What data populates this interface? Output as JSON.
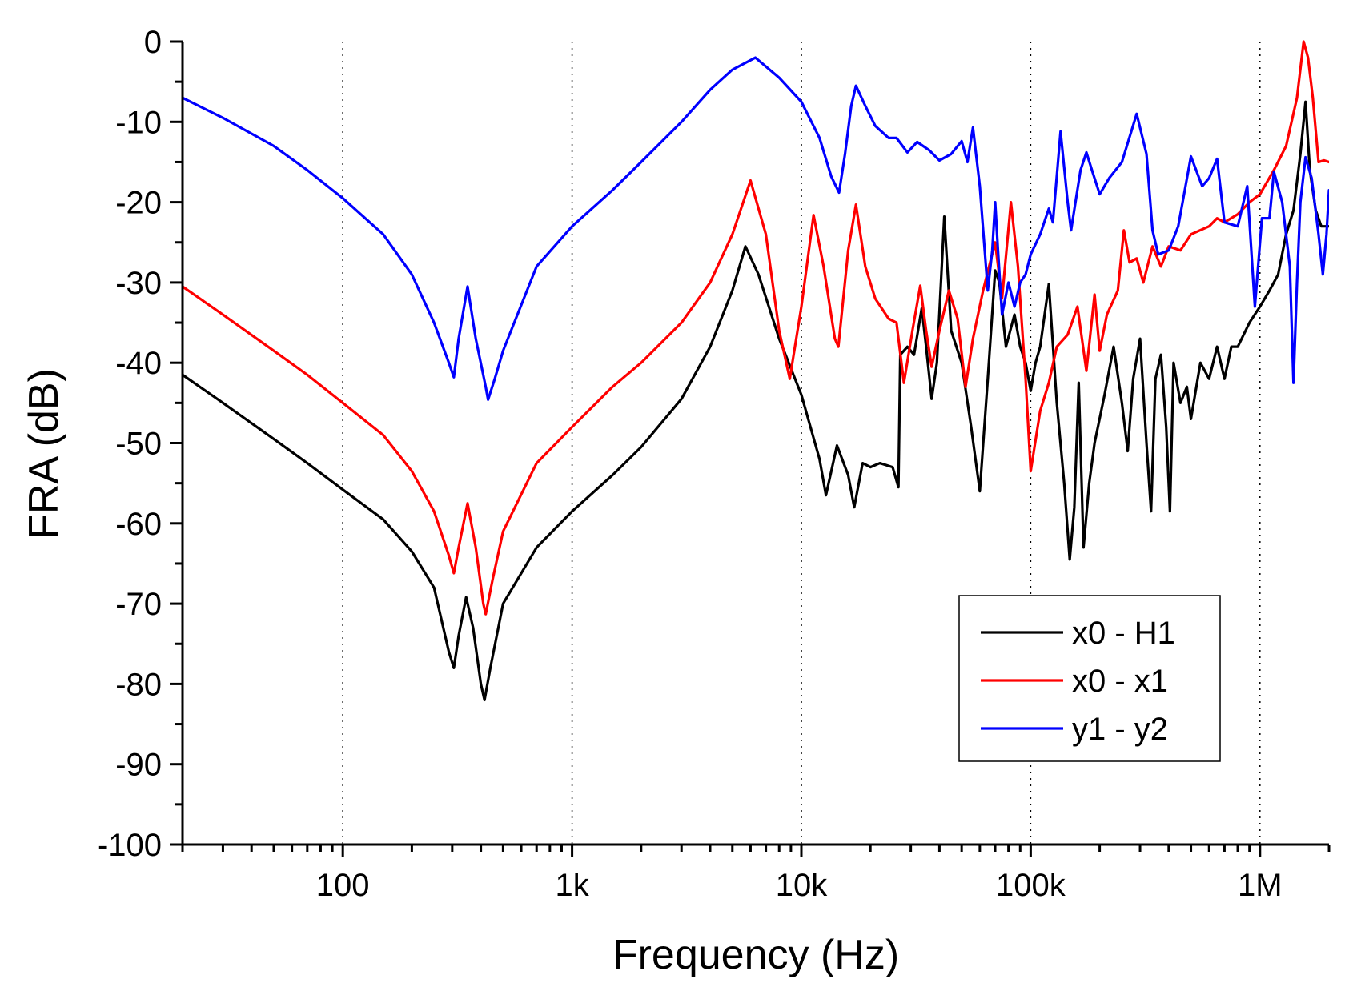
{
  "chart_data": {
    "type": "line",
    "xscale": "log",
    "xlabel": "Frequency (Hz)",
    "ylabel": "FRA (dB)",
    "xlim": [
      20,
      2000000
    ],
    "ylim": [
      -100,
      0
    ],
    "x_ticks": [
      {
        "value": 100,
        "label": "100"
      },
      {
        "value": 1000,
        "label": "1k"
      },
      {
        "value": 10000,
        "label": "10k"
      },
      {
        "value": 100000,
        "label": "100k"
      },
      {
        "value": 1000000,
        "label": "1M"
      }
    ],
    "y_ticks": [
      {
        "value": 0,
        "label": "0"
      },
      {
        "value": -10,
        "label": "-10"
      },
      {
        "value": -20,
        "label": "-20"
      },
      {
        "value": -30,
        "label": "-30"
      },
      {
        "value": -40,
        "label": "-40"
      },
      {
        "value": -50,
        "label": "-50"
      },
      {
        "value": -60,
        "label": "-60"
      },
      {
        "value": -70,
        "label": "-70"
      },
      {
        "value": -80,
        "label": "-80"
      },
      {
        "value": -90,
        "label": "-90"
      },
      {
        "value": -100,
        "label": "-100"
      }
    ],
    "grid": "vertical dotted at decades",
    "legend_position": "bottom-right",
    "series": [
      {
        "name": "x0 - H1",
        "color": "#000000",
        "points": [
          [
            20,
            -41.5
          ],
          [
            30,
            -45
          ],
          [
            50,
            -49.5
          ],
          [
            70,
            -52.5
          ],
          [
            100,
            -55.8
          ],
          [
            150,
            -59.5
          ],
          [
            200,
            -63.5
          ],
          [
            250,
            -68
          ],
          [
            290,
            -76
          ],
          [
            305,
            -78
          ],
          [
            320,
            -74
          ],
          [
            345,
            -69.2
          ],
          [
            370,
            -73
          ],
          [
            400,
            -80
          ],
          [
            415,
            -82
          ],
          [
            440,
            -78
          ],
          [
            500,
            -70
          ],
          [
            700,
            -63
          ],
          [
            1000,
            -58.5
          ],
          [
            1500,
            -54
          ],
          [
            2000,
            -50.5
          ],
          [
            3000,
            -44.5
          ],
          [
            4000,
            -38
          ],
          [
            5000,
            -31
          ],
          [
            5700,
            -25.5
          ],
          [
            6500,
            -29
          ],
          [
            8000,
            -37
          ],
          [
            10000,
            -44
          ],
          [
            12000,
            -52
          ],
          [
            12800,
            -56.5
          ],
          [
            14300,
            -50.3
          ],
          [
            16000,
            -54
          ],
          [
            17000,
            -58
          ],
          [
            18500,
            -52.5
          ],
          [
            20000,
            -53
          ],
          [
            22000,
            -52.5
          ],
          [
            25000,
            -53
          ],
          [
            26500,
            -55.5
          ],
          [
            27000,
            -39
          ],
          [
            29000,
            -38
          ],
          [
            31000,
            -39
          ],
          [
            33500,
            -33.2
          ],
          [
            35000,
            -38
          ],
          [
            37000,
            -44.5
          ],
          [
            39000,
            -40
          ],
          [
            42000,
            -21.8
          ],
          [
            45000,
            -36
          ],
          [
            50000,
            -40
          ],
          [
            55000,
            -48
          ],
          [
            60000,
            -56
          ],
          [
            65000,
            -42
          ],
          [
            70000,
            -28.5
          ],
          [
            73000,
            -30
          ],
          [
            78000,
            -38
          ],
          [
            85000,
            -34
          ],
          [
            90000,
            -38
          ],
          [
            95000,
            -40
          ],
          [
            100000,
            -43.5
          ],
          [
            105000,
            -40
          ],
          [
            110000,
            -38
          ],
          [
            120000,
            -30.2
          ],
          [
            130000,
            -45
          ],
          [
            140000,
            -55
          ],
          [
            148000,
            -64.5
          ],
          [
            155000,
            -58
          ],
          [
            162000,
            -42.5
          ],
          [
            170000,
            -63
          ],
          [
            180000,
            -55
          ],
          [
            190000,
            -50
          ],
          [
            210000,
            -44
          ],
          [
            230000,
            -38
          ],
          [
            250000,
            -45
          ],
          [
            265000,
            -51
          ],
          [
            280000,
            -42
          ],
          [
            300000,
            -37
          ],
          [
            320000,
            -50
          ],
          [
            335000,
            -58.5
          ],
          [
            350000,
            -42
          ],
          [
            370000,
            -39
          ],
          [
            390000,
            -48
          ],
          [
            405000,
            -58.5
          ],
          [
            420000,
            -40
          ],
          [
            450000,
            -45
          ],
          [
            480000,
            -43
          ],
          [
            500000,
            -47
          ],
          [
            550000,
            -40
          ],
          [
            600000,
            -42
          ],
          [
            650000,
            -38
          ],
          [
            700000,
            -42
          ],
          [
            750000,
            -38
          ],
          [
            800000,
            -38
          ],
          [
            900000,
            -35
          ],
          [
            1000000,
            -33
          ],
          [
            1100000,
            -31
          ],
          [
            1200000,
            -29
          ],
          [
            1300000,
            -24
          ],
          [
            1400000,
            -21
          ],
          [
            1500000,
            -14
          ],
          [
            1580000,
            -7.5
          ],
          [
            1650000,
            -16
          ],
          [
            1750000,
            -21
          ],
          [
            1850000,
            -23
          ],
          [
            2000000,
            -23
          ]
        ]
      },
      {
        "name": "x0 - x1",
        "color": "#ff0000",
        "points": [
          [
            20,
            -30.5
          ],
          [
            30,
            -34
          ],
          [
            50,
            -38.5
          ],
          [
            70,
            -41.5
          ],
          [
            100,
            -45
          ],
          [
            150,
            -49
          ],
          [
            200,
            -53.5
          ],
          [
            250,
            -58.5
          ],
          [
            290,
            -64
          ],
          [
            305,
            -66.2
          ],
          [
            320,
            -63
          ],
          [
            350,
            -57.5
          ],
          [
            380,
            -63
          ],
          [
            410,
            -70
          ],
          [
            420,
            -71.3
          ],
          [
            450,
            -67
          ],
          [
            500,
            -61
          ],
          [
            700,
            -52.5
          ],
          [
            1000,
            -48
          ],
          [
            1500,
            -43
          ],
          [
            2000,
            -40
          ],
          [
            3000,
            -35
          ],
          [
            4000,
            -30
          ],
          [
            5000,
            -24
          ],
          [
            6000,
            -17.3
          ],
          [
            7000,
            -24
          ],
          [
            8000,
            -36
          ],
          [
            8900,
            -42
          ],
          [
            10000,
            -33
          ],
          [
            11300,
            -21.6
          ],
          [
            12500,
            -28
          ],
          [
            14000,
            -37
          ],
          [
            14500,
            -38
          ],
          [
            16000,
            -26
          ],
          [
            17300,
            -20.3
          ],
          [
            19000,
            -28
          ],
          [
            21000,
            -32
          ],
          [
            24000,
            -34.5
          ],
          [
            26000,
            -35
          ],
          [
            28000,
            -42.5
          ],
          [
            30500,
            -36
          ],
          [
            33000,
            -30.4
          ],
          [
            35000,
            -36
          ],
          [
            37000,
            -40.5
          ],
          [
            40000,
            -36
          ],
          [
            44000,
            -31
          ],
          [
            48000,
            -34.5
          ],
          [
            52000,
            -43
          ],
          [
            56000,
            -37
          ],
          [
            62000,
            -31
          ],
          [
            70000,
            -25
          ],
          [
            75000,
            -32
          ],
          [
            82000,
            -20
          ],
          [
            88000,
            -28
          ],
          [
            95000,
            -42
          ],
          [
            100000,
            -53.5
          ],
          [
            110000,
            -46
          ],
          [
            120000,
            -42.5
          ],
          [
            130000,
            -38
          ],
          [
            145000,
            -36.5
          ],
          [
            160000,
            -33
          ],
          [
            175000,
            -41
          ],
          [
            190000,
            -31.5
          ],
          [
            200000,
            -38.5
          ],
          [
            215000,
            -34
          ],
          [
            240000,
            -31
          ],
          [
            255000,
            -23.5
          ],
          [
            270000,
            -27.5
          ],
          [
            290000,
            -27
          ],
          [
            310000,
            -30
          ],
          [
            340000,
            -25.5
          ],
          [
            370000,
            -28
          ],
          [
            400000,
            -25.5
          ],
          [
            450000,
            -26
          ],
          [
            500000,
            -24
          ],
          [
            600000,
            -23
          ],
          [
            650000,
            -22
          ],
          [
            700000,
            -22.5
          ],
          [
            800000,
            -21.5
          ],
          [
            900000,
            -20
          ],
          [
            1000000,
            -19
          ],
          [
            1150000,
            -16
          ],
          [
            1300000,
            -13
          ],
          [
            1450000,
            -7
          ],
          [
            1550000,
            0
          ],
          [
            1620000,
            -2
          ],
          [
            1700000,
            -7
          ],
          [
            1800000,
            -15
          ],
          [
            1900000,
            -14.8
          ],
          [
            2000000,
            -15
          ]
        ]
      },
      {
        "name": "y1 - y2",
        "color": "#0000ff",
        "points": [
          [
            20,
            -7
          ],
          [
            30,
            -9.5
          ],
          [
            50,
            -13
          ],
          [
            70,
            -16
          ],
          [
            100,
            -19.5
          ],
          [
            150,
            -24
          ],
          [
            200,
            -29
          ],
          [
            250,
            -35
          ],
          [
            290,
            -40
          ],
          [
            305,
            -41.8
          ],
          [
            320,
            -37
          ],
          [
            350,
            -30.5
          ],
          [
            380,
            -37
          ],
          [
            420,
            -43
          ],
          [
            430,
            -44.6
          ],
          [
            460,
            -42
          ],
          [
            500,
            -38.5
          ],
          [
            700,
            -28
          ],
          [
            1000,
            -23
          ],
          [
            1500,
            -18.5
          ],
          [
            2000,
            -15
          ],
          [
            3000,
            -10
          ],
          [
            4000,
            -6
          ],
          [
            5000,
            -3.5
          ],
          [
            6300,
            -2
          ],
          [
            8000,
            -4.5
          ],
          [
            10000,
            -7.5
          ],
          [
            12000,
            -12
          ],
          [
            13500,
            -16.8
          ],
          [
            14600,
            -18.8
          ],
          [
            15500,
            -14
          ],
          [
            16500,
            -8
          ],
          [
            17300,
            -5.5
          ],
          [
            19000,
            -8
          ],
          [
            21000,
            -10.5
          ],
          [
            24000,
            -12
          ],
          [
            26000,
            -12
          ],
          [
            29000,
            -13.8
          ],
          [
            32000,
            -12.5
          ],
          [
            36000,
            -13.5
          ],
          [
            40000,
            -14.8
          ],
          [
            45000,
            -14
          ],
          [
            50000,
            -12.4
          ],
          [
            53000,
            -15
          ],
          [
            56000,
            -10.7
          ],
          [
            60000,
            -18
          ],
          [
            65000,
            -31
          ],
          [
            68000,
            -26
          ],
          [
            70000,
            -20
          ],
          [
            72000,
            -26
          ],
          [
            75000,
            -34
          ],
          [
            80000,
            -30
          ],
          [
            85000,
            -33
          ],
          [
            90000,
            -30
          ],
          [
            95000,
            -29
          ],
          [
            100000,
            -26.5
          ],
          [
            110000,
            -24
          ],
          [
            120000,
            -20.8
          ],
          [
            125000,
            -22.5
          ],
          [
            135000,
            -11.2
          ],
          [
            145000,
            -20
          ],
          [
            150000,
            -23.5
          ],
          [
            165000,
            -16
          ],
          [
            175000,
            -13.8
          ],
          [
            185000,
            -16
          ],
          [
            200000,
            -19
          ],
          [
            220000,
            -17
          ],
          [
            250000,
            -15
          ],
          [
            290000,
            -9
          ],
          [
            320000,
            -14
          ],
          [
            340000,
            -23.5
          ],
          [
            360000,
            -26.5
          ],
          [
            400000,
            -26
          ],
          [
            440000,
            -23
          ],
          [
            500000,
            -14.3
          ],
          [
            560000,
            -18
          ],
          [
            600000,
            -17
          ],
          [
            650000,
            -14.6
          ],
          [
            700000,
            -22.5
          ],
          [
            800000,
            -23
          ],
          [
            880000,
            -18
          ],
          [
            950000,
            -33
          ],
          [
            1020000,
            -22
          ],
          [
            1100000,
            -22
          ],
          [
            1150000,
            -16.2
          ],
          [
            1250000,
            -20
          ],
          [
            1350000,
            -28
          ],
          [
            1400000,
            -42.5
          ],
          [
            1450000,
            -30
          ],
          [
            1500000,
            -20
          ],
          [
            1580000,
            -14.4
          ],
          [
            1680000,
            -17
          ],
          [
            1800000,
            -24
          ],
          [
            1880000,
            -29
          ],
          [
            1950000,
            -24
          ],
          [
            2000000,
            -18.5
          ]
        ]
      }
    ]
  }
}
